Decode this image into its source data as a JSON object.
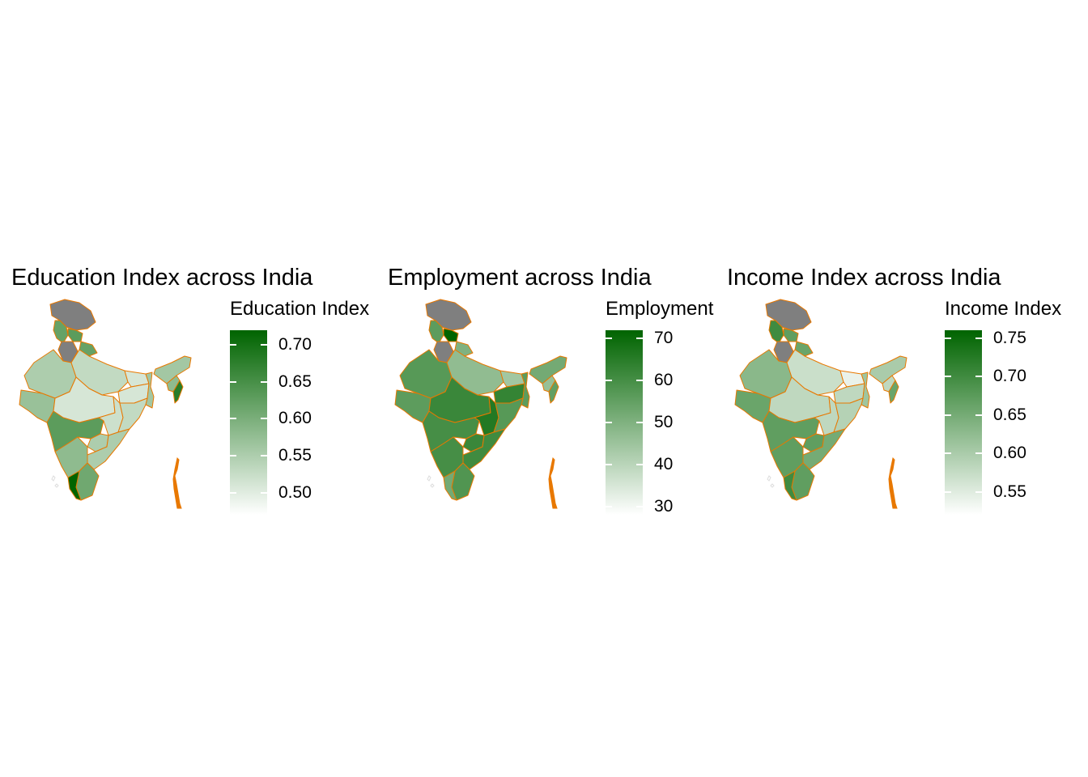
{
  "chart_data": [
    {
      "type": "choropleth",
      "title": "Education Index across India",
      "legend_title": "Education Index",
      "scale": {
        "min": 0.47,
        "max": 0.72,
        "ticks": [
          "0.50",
          "0.55",
          "0.60",
          "0.65",
          "0.70"
        ],
        "tick_values": [
          0.5,
          0.55,
          0.6,
          0.65,
          0.7
        ]
      },
      "regions": [
        {
          "id": "jk",
          "value": null
        },
        {
          "id": "hp",
          "value": 0.63
        },
        {
          "id": "pb",
          "value": 0.62
        },
        {
          "id": "uk",
          "value": 0.62
        },
        {
          "id": "hr",
          "value": null
        },
        {
          "id": "rj",
          "value": 0.55
        },
        {
          "id": "up",
          "value": 0.53
        },
        {
          "id": "gj",
          "value": 0.57
        },
        {
          "id": "mp",
          "value": 0.51
        },
        {
          "id": "bh",
          "value": 0.51
        },
        {
          "id": "jh",
          "value": 0.51
        },
        {
          "id": "wb",
          "value": 0.56
        },
        {
          "id": "cg",
          "value": 0.52
        },
        {
          "id": "od",
          "value": 0.53
        },
        {
          "id": "mh",
          "value": 0.63
        },
        {
          "id": "tg",
          "value": 0.55
        },
        {
          "id": "ap",
          "value": 0.55
        },
        {
          "id": "ka",
          "value": 0.58
        },
        {
          "id": "tn",
          "value": 0.61
        },
        {
          "id": "kl",
          "value": 0.72
        },
        {
          "id": "ne",
          "value": 0.56
        },
        {
          "id": "as",
          "value": 0.58
        },
        {
          "id": "mn",
          "value": 0.68
        }
      ]
    },
    {
      "type": "choropleth",
      "title": "Employment across India",
      "legend_title": "Employment",
      "scale": {
        "min": 28,
        "max": 72,
        "ticks": [
          "30",
          "40",
          "50",
          "60",
          "70"
        ],
        "tick_values": [
          30,
          40,
          50,
          60,
          70
        ]
      },
      "regions": [
        {
          "id": "jk",
          "value": null
        },
        {
          "id": "hp",
          "value": 72
        },
        {
          "id": "pb",
          "value": 56
        },
        {
          "id": "uk",
          "value": 50
        },
        {
          "id": "hr",
          "value": null
        },
        {
          "id": "rj",
          "value": 57
        },
        {
          "id": "up",
          "value": 47
        },
        {
          "id": "gj",
          "value": 56
        },
        {
          "id": "mp",
          "value": 62
        },
        {
          "id": "bh",
          "value": 44
        },
        {
          "id": "jh",
          "value": 63
        },
        {
          "id": "wb",
          "value": 56
        },
        {
          "id": "cg",
          "value": 66
        },
        {
          "id": "od",
          "value": 57
        },
        {
          "id": "mh",
          "value": 60
        },
        {
          "id": "tg",
          "value": 62
        },
        {
          "id": "ap",
          "value": 61
        },
        {
          "id": "ka",
          "value": 60
        },
        {
          "id": "tn",
          "value": 58
        },
        {
          "id": "kl",
          "value": 52
        },
        {
          "id": "ne",
          "value": 52
        },
        {
          "id": "as",
          "value": 46
        },
        {
          "id": "mn",
          "value": 55
        }
      ]
    },
    {
      "type": "choropleth",
      "title": "Income Index across India",
      "legend_title": "Income Index",
      "scale": {
        "min": 0.52,
        "max": 0.76,
        "ticks": [
          "0.55",
          "0.60",
          "0.65",
          "0.70",
          "0.75"
        ],
        "tick_values": [
          0.55,
          0.6,
          0.65,
          0.7,
          0.75
        ]
      },
      "regions": [
        {
          "id": "jk",
          "value": null
        },
        {
          "id": "hp",
          "value": 0.67
        },
        {
          "id": "pb",
          "value": 0.7
        },
        {
          "id": "uk",
          "value": 0.66
        },
        {
          "id": "hr",
          "value": null
        },
        {
          "id": "rj",
          "value": 0.63
        },
        {
          "id": "up",
          "value": 0.57
        },
        {
          "id": "gj",
          "value": 0.66
        },
        {
          "id": "mp",
          "value": 0.58
        },
        {
          "id": "bh",
          "value": 0.54
        },
        {
          "id": "jh",
          "value": 0.58
        },
        {
          "id": "wb",
          "value": 0.61
        },
        {
          "id": "cg",
          "value": 0.58
        },
        {
          "id": "od",
          "value": 0.59
        },
        {
          "id": "mh",
          "value": 0.67
        },
        {
          "id": "tg",
          "value": 0.67
        },
        {
          "id": "ap",
          "value": 0.65
        },
        {
          "id": "ka",
          "value": 0.67
        },
        {
          "id": "tn",
          "value": 0.67
        },
        {
          "id": "kl",
          "value": 0.7
        },
        {
          "id": "ne",
          "value": 0.6
        },
        {
          "id": "as",
          "value": 0.58
        },
        {
          "id": "mn",
          "value": 0.66
        }
      ]
    }
  ],
  "colors": {
    "low": "#ffffff",
    "high": "#006400",
    "na": "#7f7f7f",
    "border": "#e87800"
  }
}
